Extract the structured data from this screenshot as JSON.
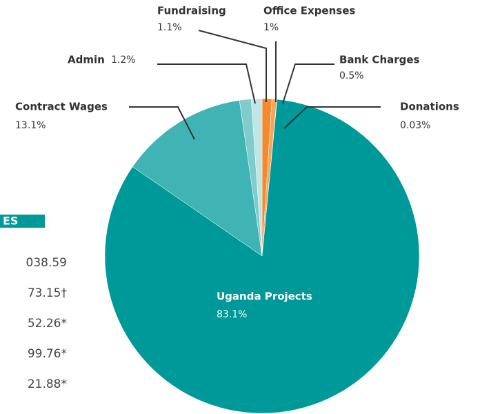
{
  "chart_data": {
    "type": "pie",
    "categories": [
      "Office Expenses",
      "Bank Charges",
      "Donations",
      "Uganda Projects",
      "Contract Wages",
      "Admin",
      "Fundraising"
    ],
    "values": [
      1,
      0.5,
      0.03,
      83.1,
      13.1,
      1.2,
      1.1
    ],
    "value_labels": [
      "1%",
      "0.5%",
      "0.03%",
      "83.1%",
      "13.1%",
      "1.2%",
      "1.1%"
    ],
    "colors": [
      "#f28b30",
      "#f6a55c",
      "#f9c08a",
      "#009999",
      "#40b4b4",
      "#80cccc",
      "#bfe5e5"
    ]
  },
  "table": {
    "header": "ES",
    "rows": [
      "038.59",
      "73.15†",
      "52.26*",
      "99.76*",
      "21.88*"
    ]
  }
}
